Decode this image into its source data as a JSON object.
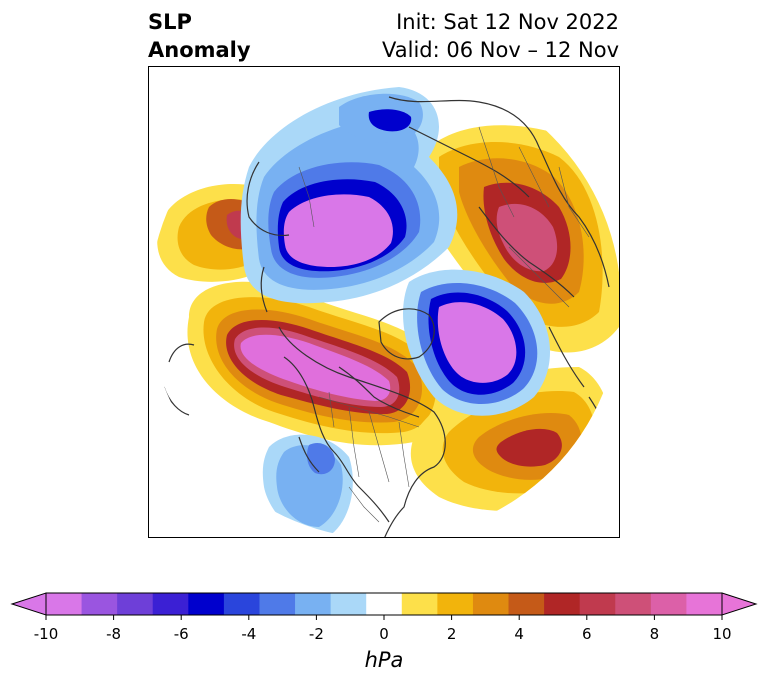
{
  "title": {
    "variable_line1": "SLP",
    "variable_line2": "Anomaly",
    "init": "Init: Sat 12 Nov 2022",
    "valid": "Valid: 06 Nov – 12 Nov"
  },
  "map": {
    "projection": "north-polar-stereographic",
    "field": "sea level pressure anomaly",
    "features": [
      "coastlines",
      "country-borders",
      "us-state-borders",
      "canadian-province-borders"
    ]
  },
  "colorbar": {
    "unit": "hPa",
    "ticks": [
      "-10",
      "-8",
      "-6",
      "-4",
      "-2",
      "0",
      "2",
      "4",
      "6",
      "8",
      "10"
    ],
    "extend": "both",
    "levels": [
      -10,
      -9,
      -8,
      -7,
      -6,
      -5,
      -4,
      -3,
      -2,
      -1,
      1,
      2,
      3,
      4,
      5,
      6,
      7,
      8,
      9,
      10
    ],
    "colors": [
      "#d977e8",
      "#9a55e0",
      "#6e3fd8",
      "#3b20d4",
      "#0000cd",
      "#2a45dc",
      "#4f7ae8",
      "#78b1f2",
      "#aad8f8",
      "#ffffff",
      "#fde04a",
      "#f2b40c",
      "#df8a10",
      "#c55a18",
      "#b02626",
      "#c03a4e",
      "#ce5078",
      "#dc60a8",
      "#e774d8"
    ],
    "under_color": "#d977e8",
    "over_color": "#e774d8"
  }
}
